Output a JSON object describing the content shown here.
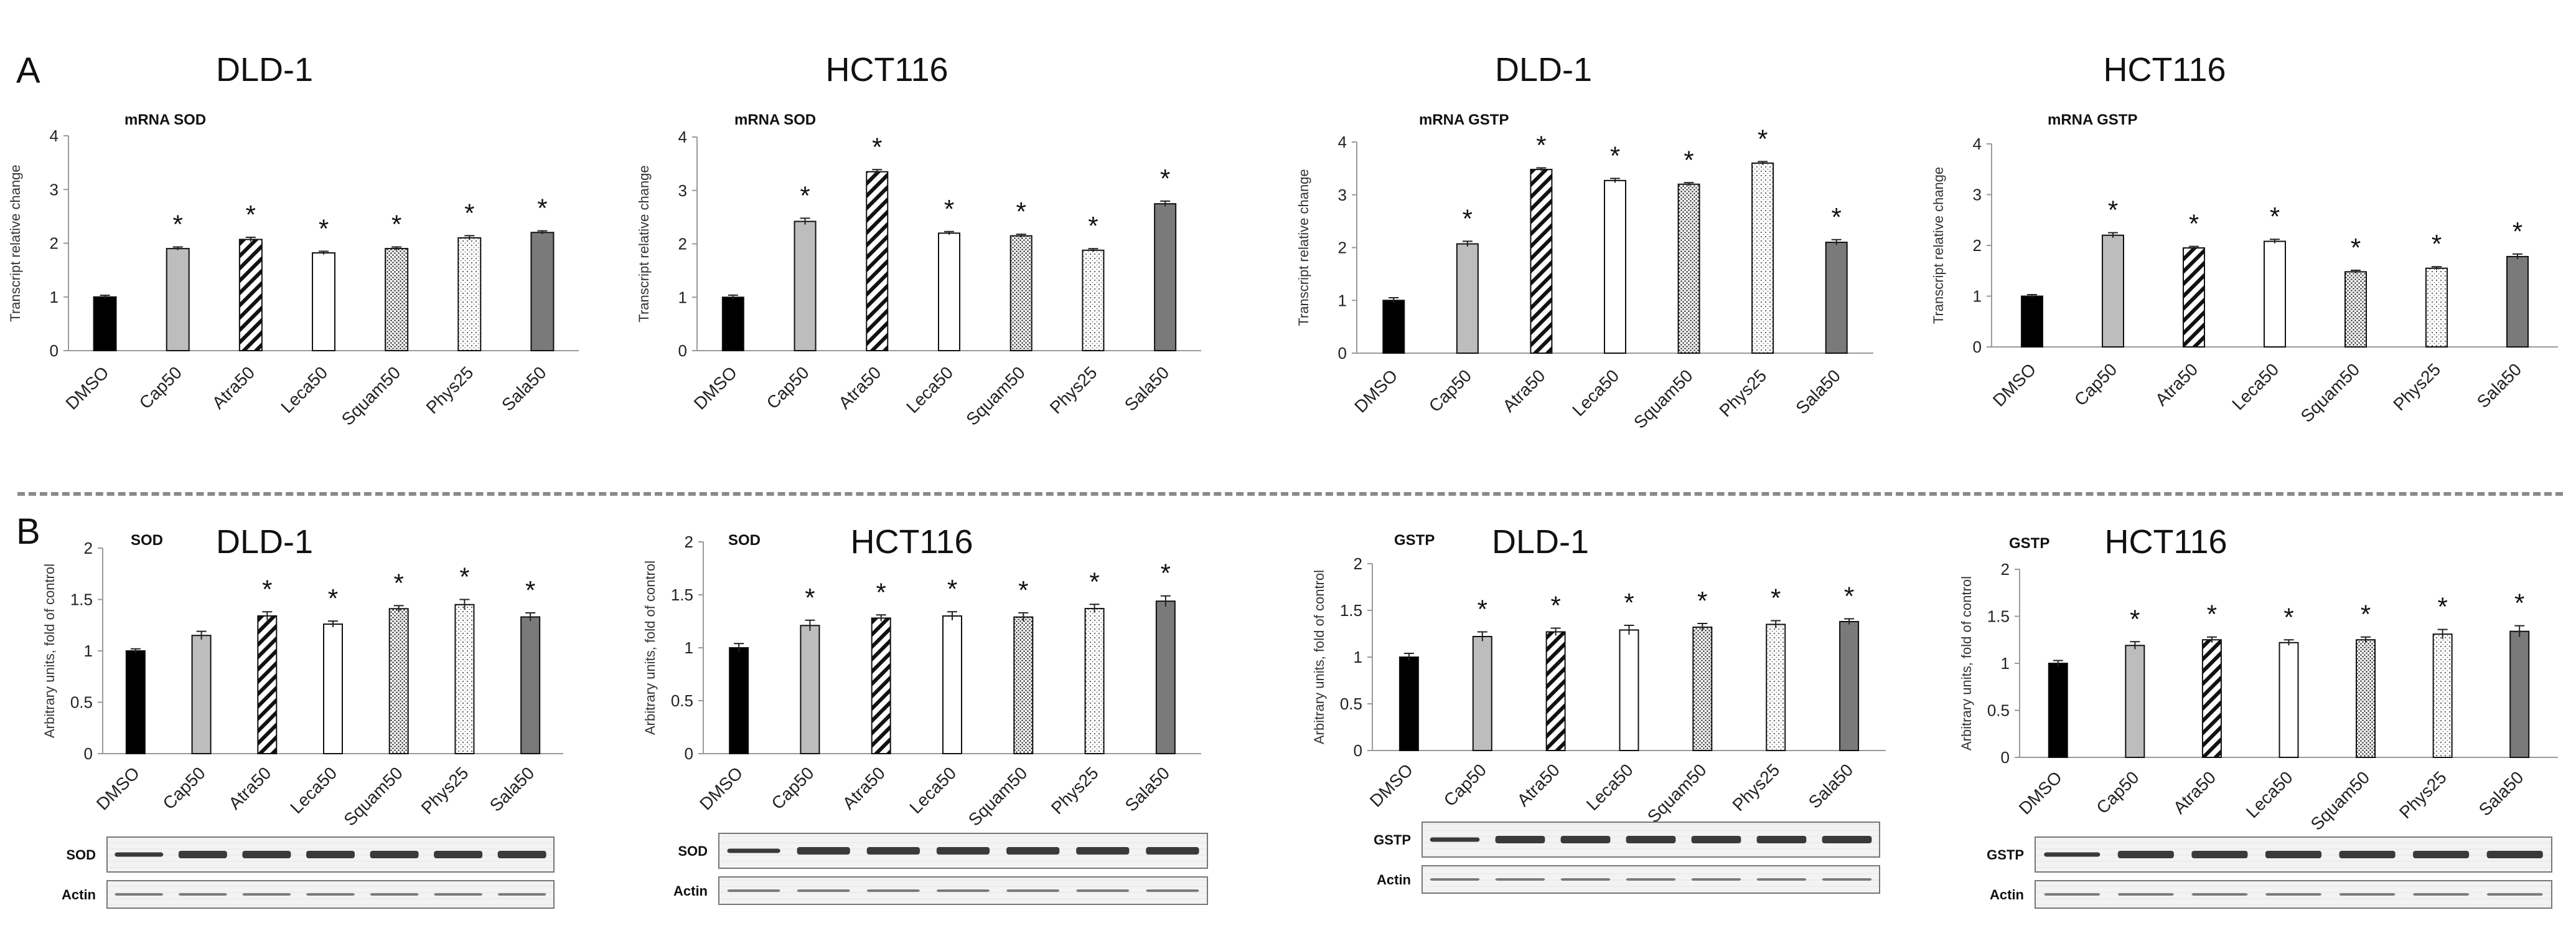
{
  "sections": {
    "A": "A",
    "B": "B"
  },
  "colors": {
    "dmso": "#000000",
    "cap": "#bdbdbd",
    "leca": "#ffffff",
    "sala": "#7a7a7a",
    "stroke": "#111111",
    "axis": "#9a9a9a",
    "blot_bg": "#f2f2f2"
  },
  "chart_data": [
    {
      "type": "bar",
      "panel": "A",
      "title": "DLD-1",
      "subtitle": "mRNA SOD",
      "ylabel": "Transcript relative change",
      "ylim": [
        0,
        4
      ],
      "yticks": [
        0,
        1,
        2,
        3,
        4
      ],
      "categories": [
        "DMSO",
        "Cap50",
        "Atra50",
        "Leca50",
        "Squam50",
        "Phys25",
        "Sala50"
      ],
      "values": [
        1.0,
        1.9,
        2.07,
        1.82,
        1.9,
        2.1,
        2.2
      ],
      "errors": [
        0.03,
        0.03,
        0.04,
        0.03,
        0.03,
        0.04,
        0.03
      ],
      "significance": [
        "",
        "*",
        "*",
        "*",
        "*",
        "*",
        "*"
      ]
    },
    {
      "type": "bar",
      "panel": "A",
      "title": "HCT116",
      "subtitle": "mRNA SOD",
      "ylabel": "Transcript relative change",
      "ylim": [
        0,
        4
      ],
      "yticks": [
        0,
        1,
        2,
        3,
        4
      ],
      "categories": [
        "DMSO",
        "Cap50",
        "Atra50",
        "Leca50",
        "Squam50",
        "Phys25",
        "Sala50"
      ],
      "values": [
        1.0,
        2.42,
        3.35,
        2.2,
        2.15,
        1.88,
        2.75
      ],
      "errors": [
        0.04,
        0.06,
        0.04,
        0.03,
        0.03,
        0.03,
        0.05
      ],
      "significance": [
        "",
        "*",
        "*",
        "*",
        "*",
        "*",
        "*"
      ]
    },
    {
      "type": "bar",
      "panel": "A",
      "title": "DLD-1",
      "subtitle": "mRNA GSTP",
      "ylabel": "Transcript relative change",
      "ylim": [
        0,
        4
      ],
      "yticks": [
        0,
        1,
        2,
        3,
        4
      ],
      "categories": [
        "DMSO",
        "Cap50",
        "Atra50",
        "Leca50",
        "Squam50",
        "Phys25",
        "Sala50"
      ],
      "values": [
        1.0,
        2.07,
        3.48,
        3.27,
        3.2,
        3.6,
        2.1
      ],
      "errors": [
        0.05,
        0.05,
        0.03,
        0.04,
        0.03,
        0.03,
        0.05
      ],
      "significance": [
        "",
        "*",
        "*",
        "*",
        "*",
        "*",
        "*"
      ]
    },
    {
      "type": "bar",
      "panel": "A",
      "title": "HCT116",
      "subtitle": "mRNA GSTP",
      "ylabel": "Transcript relative change",
      "ylim": [
        0,
        4
      ],
      "yticks": [
        0,
        1,
        2,
        3,
        4
      ],
      "categories": [
        "DMSO",
        "Cap50",
        "Atra50",
        "Leca50",
        "Squam50",
        "Phys25",
        "Sala50"
      ],
      "values": [
        1.0,
        2.2,
        1.95,
        2.08,
        1.48,
        1.55,
        1.78
      ],
      "errors": [
        0.03,
        0.05,
        0.03,
        0.04,
        0.03,
        0.03,
        0.05
      ],
      "significance": [
        "",
        "*",
        "*",
        "*",
        "*",
        "*",
        "*"
      ]
    },
    {
      "type": "bar",
      "panel": "B",
      "title": "DLD-1",
      "subtitle": "SOD",
      "ylabel": "Arbitrary units, fold of control",
      "ylim": [
        0,
        2
      ],
      "yticks": [
        0,
        0.5,
        1,
        1.5,
        2
      ],
      "categories": [
        "DMSO",
        "Cap50",
        "Atra50",
        "Leca50",
        "Squam50",
        "Phys25",
        "Sala50"
      ],
      "values": [
        1.0,
        1.15,
        1.34,
        1.26,
        1.41,
        1.45,
        1.33
      ],
      "errors": [
        0.02,
        0.04,
        0.04,
        0.03,
        0.03,
        0.05,
        0.04
      ],
      "significance": [
        "",
        "",
        "*",
        "*",
        "*",
        "*",
        "*"
      ],
      "blot": {
        "bands": [
          "SOD",
          "Actin"
        ]
      }
    },
    {
      "type": "bar",
      "panel": "B",
      "title": "HCT116",
      "subtitle": "SOD",
      "ylabel": "Arbitrary units, fold of control",
      "ylim": [
        0,
        2
      ],
      "yticks": [
        0,
        0.5,
        1,
        1.5,
        2
      ],
      "categories": [
        "DMSO",
        "Cap50",
        "Atra50",
        "Leca50",
        "Squam50",
        "Phys25",
        "Sala50"
      ],
      "values": [
        1.0,
        1.21,
        1.28,
        1.3,
        1.29,
        1.37,
        1.44
      ],
      "errors": [
        0.04,
        0.05,
        0.03,
        0.04,
        0.04,
        0.04,
        0.05
      ],
      "significance": [
        "",
        "*",
        "*",
        "*",
        "*",
        "*",
        "*"
      ],
      "blot": {
        "bands": [
          "SOD",
          "Actin"
        ]
      }
    },
    {
      "type": "bar",
      "panel": "B",
      "title": "DLD-1",
      "subtitle": "GSTP",
      "ylabel": "Arbitrary units, fold of control",
      "ylim": [
        0,
        2
      ],
      "yticks": [
        0,
        0.5,
        1,
        1.5,
        2
      ],
      "categories": [
        "DMSO",
        "Cap50",
        "Atra50",
        "Leca50",
        "Squam50",
        "Phys25",
        "Sala50"
      ],
      "values": [
        1.0,
        1.22,
        1.27,
        1.29,
        1.32,
        1.35,
        1.38
      ],
      "errors": [
        0.04,
        0.05,
        0.04,
        0.05,
        0.04,
        0.04,
        0.03
      ],
      "significance": [
        "",
        "*",
        "*",
        "*",
        "*",
        "*",
        "*"
      ],
      "blot": {
        "bands": [
          "GSTP",
          "Actin"
        ]
      }
    },
    {
      "type": "bar",
      "panel": "B",
      "title": "HCT116",
      "subtitle": "GSTP",
      "ylabel": "Arbitrary units, fold of control",
      "ylim": [
        0,
        2
      ],
      "yticks": [
        0,
        0.5,
        1,
        1.5,
        2
      ],
      "categories": [
        "DMSO",
        "Cap50",
        "Atra50",
        "Leca50",
        "Squam50",
        "Phys25",
        "Sala50"
      ],
      "values": [
        1.0,
        1.19,
        1.25,
        1.22,
        1.25,
        1.31,
        1.34
      ],
      "errors": [
        0.03,
        0.04,
        0.03,
        0.03,
        0.03,
        0.05,
        0.06
      ],
      "significance": [
        "",
        "*",
        "*",
        "*",
        "*",
        "*",
        "*"
      ],
      "blot": {
        "bands": [
          "GSTP",
          "Actin"
        ]
      }
    }
  ]
}
